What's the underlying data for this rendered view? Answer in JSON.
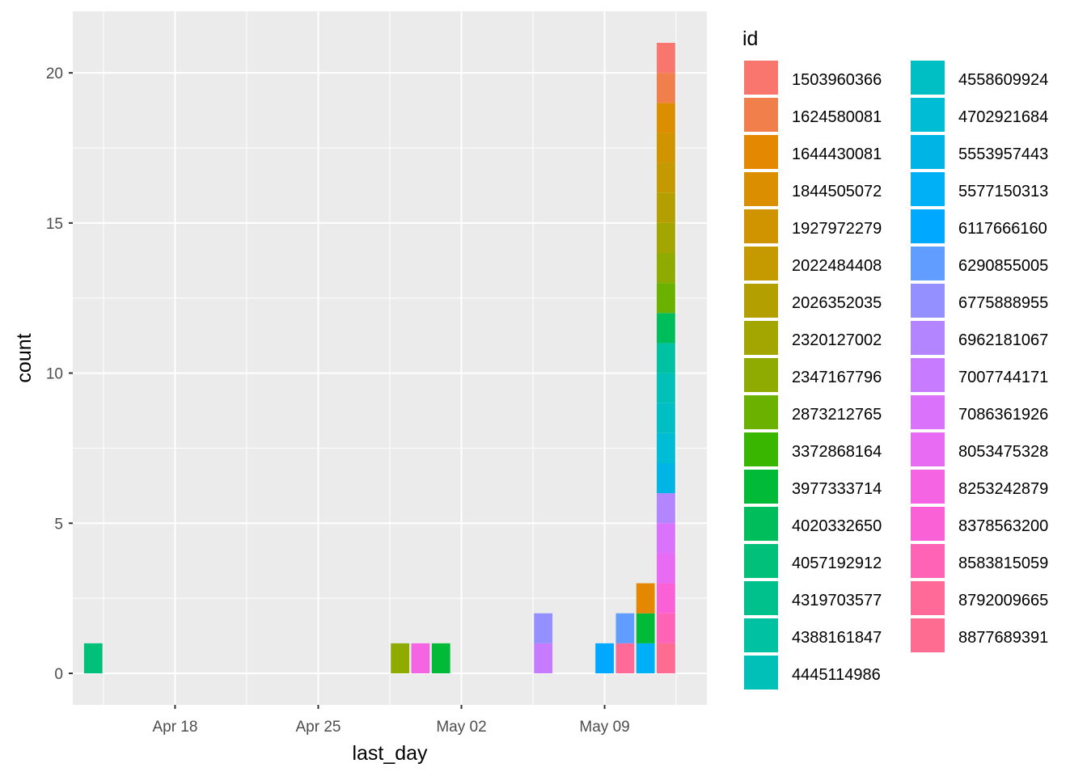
{
  "chart_data": {
    "type": "bar",
    "stacked": true,
    "xlabel": "last_day",
    "ylabel": "count",
    "legend_title": "id",
    "legend_position": "right",
    "grid": true,
    "x_range": [
      "2025-04-13",
      "2025-05-14"
    ],
    "ylim": [
      -1.05,
      22.05
    ],
    "x_ticks": [
      {
        "date": "2025-04-18",
        "label": "Apr 18"
      },
      {
        "date": "2025-04-25",
        "label": "Apr 25"
      },
      {
        "date": "2025-05-02",
        "label": "May 02"
      },
      {
        "date": "2025-05-09",
        "label": "May 09"
      }
    ],
    "y_ticks": [
      0,
      5,
      10,
      15,
      20
    ],
    "series": [
      {
        "name": "1503960366",
        "color": "#F8766D"
      },
      {
        "name": "1624580081",
        "color": "#F07F4C"
      },
      {
        "name": "1644430081",
        "color": "#E38800"
      },
      {
        "name": "1844505072",
        "color": "#DB8E00"
      },
      {
        "name": "1927972279",
        "color": "#D09400"
      },
      {
        "name": "2022484408",
        "color": "#C49A00"
      },
      {
        "name": "2026352035",
        "color": "#B3A000"
      },
      {
        "name": "2320127002",
        "color": "#A3A500"
      },
      {
        "name": "2347167796",
        "color": "#8FAA00"
      },
      {
        "name": "2873212765",
        "color": "#6BB100"
      },
      {
        "name": "3372868164",
        "color": "#39B600"
      },
      {
        "name": "3977333714",
        "color": "#00BA38"
      },
      {
        "name": "4020332650",
        "color": "#00BD5C"
      },
      {
        "name": "4057192912",
        "color": "#00C07A"
      },
      {
        "name": "4319703577",
        "color": "#00C08B"
      },
      {
        "name": "4388161847",
        "color": "#00C1A2"
      },
      {
        "name": "4445114986",
        "color": "#00C0B8"
      },
      {
        "name": "4558609924",
        "color": "#00BFC4"
      },
      {
        "name": "4702921684",
        "color": "#00BCD4"
      },
      {
        "name": "5553957443",
        "color": "#00B5E6"
      },
      {
        "name": "5577150313",
        "color": "#00B0F6"
      },
      {
        "name": "6117666160",
        "color": "#00A9FF"
      },
      {
        "name": "6290855005",
        "color": "#619CFF"
      },
      {
        "name": "6775888955",
        "color": "#9590FF"
      },
      {
        "name": "6962181067",
        "color": "#B385FF"
      },
      {
        "name": "7007744171",
        "color": "#C77CFF"
      },
      {
        "name": "7086361926",
        "color": "#DB72FB"
      },
      {
        "name": "8053475328",
        "color": "#E76BF3"
      },
      {
        "name": "8253242879",
        "color": "#F564E3"
      },
      {
        "name": "8378563200",
        "color": "#FB61D7"
      },
      {
        "name": "8583815059",
        "color": "#FF63B6"
      },
      {
        "name": "8792009665",
        "color": "#FF6A98"
      },
      {
        "name": "8877689391",
        "color": "#FF6C91"
      }
    ],
    "bars": [
      {
        "date": "2025-04-14",
        "stack": [
          "4057192912"
        ]
      },
      {
        "date": "2025-04-29",
        "stack": [
          "2347167796"
        ]
      },
      {
        "date": "2025-04-30",
        "stack": [
          "8253242879"
        ]
      },
      {
        "date": "2025-05-01",
        "stack": [
          "3977333714"
        ]
      },
      {
        "date": "2025-05-06",
        "stack": [
          "7007744171",
          "6775888955"
        ]
      },
      {
        "date": "2025-05-09",
        "stack": [
          "6117666160"
        ]
      },
      {
        "date": "2025-05-10",
        "stack": [
          "8792009665",
          "6290855005"
        ]
      },
      {
        "date": "2025-05-11",
        "stack": [
          "5577150313",
          "3977333714",
          "1644430081"
        ]
      },
      {
        "date": "2025-05-12",
        "stack": [
          "8877689391",
          "8583815059",
          "8378563200",
          "8053475328",
          "7086361926",
          "6962181067",
          "5553957443",
          "4702921684",
          "4558609924",
          "4445114986",
          "4388161847",
          "4020332650",
          "2873212765",
          "2347167796",
          "2320127002",
          "2026352035",
          "2022484408",
          "1927972279",
          "1844505072",
          "1624580081",
          "1503960366"
        ]
      }
    ]
  }
}
